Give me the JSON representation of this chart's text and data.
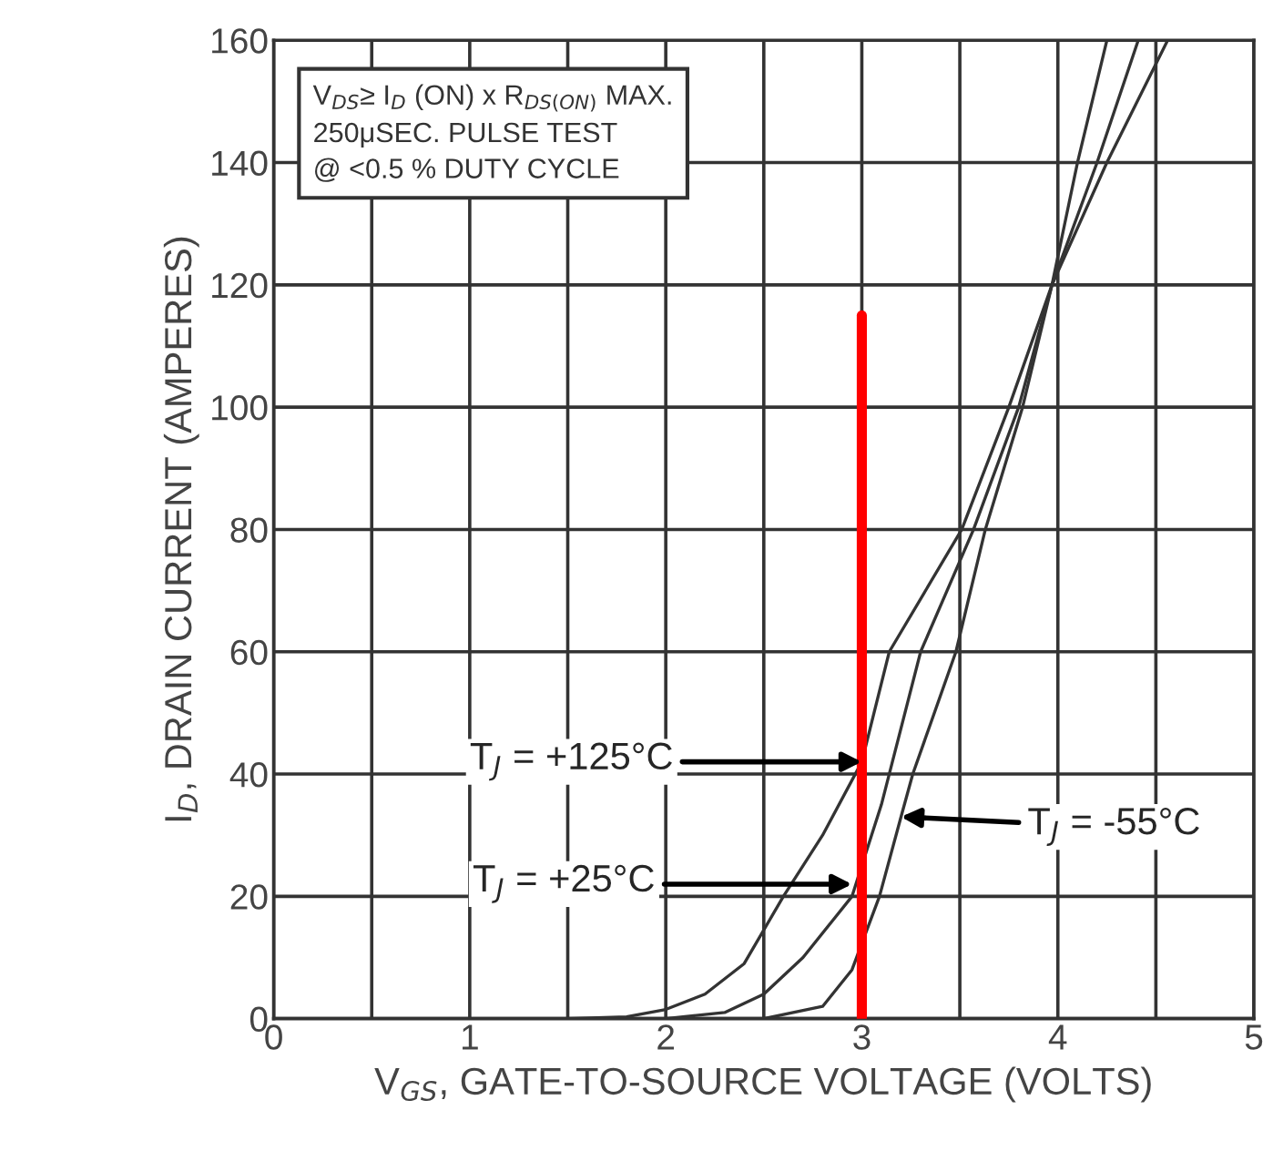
{
  "chart_data": {
    "type": "line",
    "xlabel": "V$_{GS}$, GATE-TO-SOURCE VOLTAGE (VOLTS)",
    "ylabel": "I$_{D}$, DRAIN CURRENT (AMPERES)",
    "xlim": [
      0,
      5
    ],
    "ylim": [
      0,
      160
    ],
    "xticks": [
      0,
      {
        "value": 0.5,
        "label": null
      },
      1,
      {
        "value": 1.5,
        "label": null
      },
      2,
      {
        "value": 2.5,
        "label": null
      },
      3,
      {
        "value": 3.5,
        "label": null
      },
      4,
      {
        "value": 4.5,
        "label": null
      },
      5
    ],
    "yticks": [
      0,
      20,
      40,
      60,
      80,
      100,
      120,
      140,
      160
    ],
    "grid": true,
    "legend": false,
    "marker": "none",
    "line_style": "solid",
    "series": [
      {
        "color": "#333333",
        "x": [
          1.5,
          1.8,
          2.0,
          2.2,
          2.4,
          2.6,
          2.8,
          3.0,
          3.14,
          3.51,
          3.75,
          3.97,
          4.25,
          4.56
        ],
        "values": [
          0,
          0.3,
          1.5,
          4,
          9,
          20,
          30,
          42,
          60,
          80,
          100,
          120,
          140,
          160
        ]
      },
      {
        "color": "#333333",
        "x": [
          2.0,
          2.3,
          2.5,
          2.7,
          2.85,
          2.95,
          3.1,
          3.3,
          3.57,
          3.8,
          3.97,
          4.2,
          4.41
        ],
        "values": [
          0,
          1,
          4,
          10,
          16,
          20,
          35,
          60,
          80,
          100,
          120,
          140,
          160
        ]
      },
      {
        "color": "#333333",
        "x": [
          2.5,
          2.8,
          2.95,
          3.09,
          3.2,
          3.26,
          3.48,
          3.63,
          3.82,
          3.97,
          4.1,
          4.25
        ],
        "values": [
          0,
          2,
          8,
          20,
          33,
          40,
          60,
          80,
          100,
          120,
          140,
          160
        ]
      },
      {
        "color": "#ff0000",
        "x": [
          3,
          3
        ],
        "values": [
          0,
          115
        ]
      }
    ],
    "annotations": [
      "V$_{DS}$≥ I$_{D}$ (ON) x R$_{DS(ON)}$ MAX.\n250μSEC. PULSE TEST\n@ <0.5 % DUTY CYCLE",
      {
        "text": "T$_{J}$ = +125°C",
        "x": 3.0,
        "y": 42
      },
      {
        "text": "T$_{J}$ = +25°C",
        "x": 2.95,
        "y": 22
      },
      {
        "text": "T$_{J}$ = -55°C",
        "x": 3.2,
        "y": 33
      }
    ]
  }
}
